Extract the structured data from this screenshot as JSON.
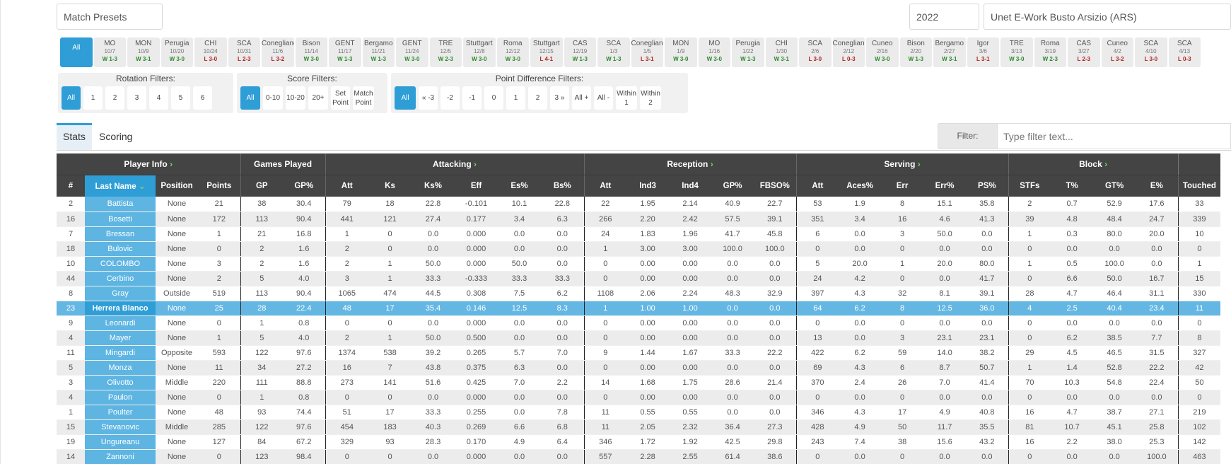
{
  "top": {
    "presets": "Match Presets",
    "year": "2022",
    "team": "Unet E-Work Busto Arsizio (ARS)"
  },
  "matches": [
    {
      "l": "All",
      "d": "",
      "r": "",
      "sel": true
    },
    {
      "l": "MO",
      "d": "10/7",
      "r": "W 1-3",
      "w": true
    },
    {
      "l": "MON",
      "d": "10/9",
      "r": "W 3-1",
      "w": true
    },
    {
      "l": "Perugia",
      "d": "10/20",
      "r": "W 3-0",
      "w": true
    },
    {
      "l": "CHI",
      "d": "10/24",
      "r": "L 3-0",
      "w": false
    },
    {
      "l": "SCA",
      "d": "10/31",
      "r": "L 2-3",
      "w": false
    },
    {
      "l": "Conegliano",
      "d": "11/6",
      "r": "L 3-2",
      "w": false
    },
    {
      "l": "Bison",
      "d": "11/14",
      "r": "W 3-0",
      "w": true
    },
    {
      "l": "GENT",
      "d": "11/17",
      "r": "W 1-3",
      "w": true
    },
    {
      "l": "Bergamo",
      "d": "11/21",
      "r": "W 1-3",
      "w": true
    },
    {
      "l": "GENT",
      "d": "11/24",
      "r": "W 3-0",
      "w": true
    },
    {
      "l": "TRE",
      "d": "12/5",
      "r": "W 2-3",
      "w": true
    },
    {
      "l": "Stuttgart",
      "d": "12/8",
      "r": "W 3-0",
      "w": true
    },
    {
      "l": "Roma",
      "d": "12/12",
      "r": "W 3-0",
      "w": true
    },
    {
      "l": "Stuttgart",
      "d": "12/15",
      "r": "L 4-1",
      "w": false
    },
    {
      "l": "CAS",
      "d": "12/19",
      "r": "W 1-3",
      "w": true
    },
    {
      "l": "SCA",
      "d": "1/3",
      "r": "W 1-3",
      "w": true
    },
    {
      "l": "Conegliano",
      "d": "1/5",
      "r": "L 3-1",
      "w": false
    },
    {
      "l": "MON",
      "d": "1/9",
      "r": "W 3-0",
      "w": true
    },
    {
      "l": "MO",
      "d": "1/16",
      "r": "W 3-0",
      "w": true
    },
    {
      "l": "Perugia",
      "d": "1/22",
      "r": "W 1-3",
      "w": true
    },
    {
      "l": "CHI",
      "d": "1/30",
      "r": "W 3-1",
      "w": true
    },
    {
      "l": "SCA",
      "d": "2/6",
      "r": "L 3-0",
      "w": false
    },
    {
      "l": "Conegliano",
      "d": "2/12",
      "r": "L 0-3",
      "w": false
    },
    {
      "l": "Cuneo",
      "d": "2/16",
      "r": "W 3-0",
      "w": true
    },
    {
      "l": "Bison",
      "d": "2/20",
      "r": "W 1-3",
      "w": true
    },
    {
      "l": "Bergamo",
      "d": "2/27",
      "r": "W 3-1",
      "w": true
    },
    {
      "l": "Igor",
      "d": "3/6",
      "r": "L 3-1",
      "w": false
    },
    {
      "l": "TRE",
      "d": "3/13",
      "r": "W 3-0",
      "w": true
    },
    {
      "l": "Roma",
      "d": "3/19",
      "r": "W 2-3",
      "w": true
    },
    {
      "l": "CAS",
      "d": "3/27",
      "r": "L 2-3",
      "w": false
    },
    {
      "l": "Cuneo",
      "d": "4/2",
      "r": "L 3-2",
      "w": false
    },
    {
      "l": "SCA",
      "d": "4/10",
      "r": "L 3-0",
      "w": false
    },
    {
      "l": "SCA",
      "d": "4/13",
      "r": "L 0-3",
      "w": false
    }
  ],
  "filters": {
    "rotation": {
      "title": "Rotation Filters:",
      "opts": [
        "All",
        "1",
        "2",
        "3",
        "4",
        "5",
        "6"
      ]
    },
    "score": {
      "title": "Score Filters:",
      "opts": [
        "All",
        "0-10",
        "10-20",
        "20+",
        "Set Point",
        "Match Point"
      ]
    },
    "pointdiff": {
      "title": "Point Difference Filters:",
      "opts": [
        "All",
        "« -3",
        "-2",
        "-1",
        "0",
        "1",
        "2",
        "3 »",
        "All +",
        "All -",
        "Within 1",
        "Within 2"
      ]
    }
  },
  "tabs": [
    "Stats",
    "Scoring"
  ],
  "filter": {
    "label": "Filter:",
    "placeholder": "Type filter text..."
  },
  "groups": [
    "Player Info",
    "Games Played",
    "Attacking",
    "Reception",
    "Serving",
    "Block"
  ],
  "columns": [
    "#",
    "Last Name",
    "Position",
    "Points",
    "GP",
    "GP%",
    "Att",
    "Ks",
    "Ks%",
    "Eff",
    "Es%",
    "Bs%",
    "Att",
    "Ind3",
    "Ind4",
    "GP%",
    "FBSO%",
    "Att",
    "Aces%",
    "Err",
    "Err%",
    "PS%",
    "STFs",
    "T%",
    "GT%",
    "E%",
    "Touched"
  ],
  "rows": [
    [
      "2",
      "Battista",
      "None",
      "21",
      "38",
      "30.4",
      "79",
      "18",
      "22.8",
      "-0.101",
      "10.1",
      "22.8",
      "22",
      "1.95",
      "2.14",
      "40.9",
      "22.7",
      "53",
      "1.9",
      "8",
      "15.1",
      "35.8",
      "2",
      "0.7",
      "52.9",
      "17.6",
      "33"
    ],
    [
      "16",
      "Bosetti",
      "None",
      "172",
      "113",
      "90.4",
      "441",
      "121",
      "27.4",
      "0.177",
      "3.4",
      "6.3",
      "266",
      "2.20",
      "2.42",
      "57.5",
      "39.1",
      "351",
      "3.4",
      "16",
      "4.6",
      "41.3",
      "39",
      "4.8",
      "48.4",
      "24.7",
      "339"
    ],
    [
      "7",
      "Bressan",
      "None",
      "1",
      "21",
      "16.8",
      "1",
      "0",
      "0.0",
      "0.000",
      "0.0",
      "0.0",
      "24",
      "1.83",
      "1.96",
      "41.7",
      "45.8",
      "6",
      "0.0",
      "3",
      "50.0",
      "0.0",
      "1",
      "0.3",
      "80.0",
      "20.0",
      "10"
    ],
    [
      "18",
      "Bulovic",
      "None",
      "0",
      "2",
      "1.6",
      "2",
      "0",
      "0.0",
      "0.000",
      "0.0",
      "0.0",
      "1",
      "3.00",
      "3.00",
      "100.0",
      "100.0",
      "0",
      "0.0",
      "0",
      "0.0",
      "0.0",
      "0",
      "0.0",
      "0.0",
      "0.0",
      "0"
    ],
    [
      "10",
      "COLOMBO",
      "None",
      "3",
      "2",
      "1.6",
      "2",
      "1",
      "50.0",
      "0.000",
      "50.0",
      "0.0",
      "0",
      "0.00",
      "0.00",
      "0.0",
      "0.0",
      "5",
      "20.0",
      "1",
      "20.0",
      "80.0",
      "1",
      "0.5",
      "100.0",
      "0.0",
      "1"
    ],
    [
      "44",
      "Cerbino",
      "None",
      "2",
      "5",
      "4.0",
      "3",
      "1",
      "33.3",
      "-0.333",
      "33.3",
      "33.3",
      "0",
      "0.00",
      "0.00",
      "0.0",
      "0.0",
      "24",
      "4.2",
      "0",
      "0.0",
      "41.7",
      "0",
      "6.6",
      "50.0",
      "16.7",
      "15"
    ],
    [
      "8",
      "Gray",
      "Outside",
      "519",
      "113",
      "90.4",
      "1065",
      "474",
      "44.5",
      "0.308",
      "7.5",
      "6.2",
      "1108",
      "2.06",
      "2.24",
      "48.3",
      "32.9",
      "397",
      "4.3",
      "32",
      "8.1",
      "39.1",
      "28",
      "4.7",
      "46.4",
      "31.1",
      "330"
    ],
    [
      "23",
      "Herrera Blanco",
      "None",
      "25",
      "28",
      "22.4",
      "48",
      "17",
      "35.4",
      "0.146",
      "12.5",
      "8.3",
      "1",
      "1.00",
      "1.00",
      "0.0",
      "0.0",
      "64",
      "6.2",
      "8",
      "12.5",
      "36.0",
      "4",
      "2.5",
      "40.4",
      "23.4",
      "11"
    ],
    [
      "9",
      "Leonardi",
      "None",
      "0",
      "1",
      "0.8",
      "0",
      "0",
      "0.0",
      "0.000",
      "0.0",
      "0.0",
      "0",
      "0.00",
      "0.00",
      "0.0",
      "0.0",
      "0",
      "0.0",
      "0",
      "0.0",
      "0.0",
      "0",
      "0.0",
      "0.0",
      "0.0",
      "0"
    ],
    [
      "4",
      "Mayer",
      "None",
      "1",
      "5",
      "4.0",
      "2",
      "1",
      "50.0",
      "0.500",
      "0.0",
      "0.0",
      "0",
      "0.00",
      "0.00",
      "0.0",
      "0.0",
      "13",
      "0.0",
      "3",
      "23.1",
      "23.1",
      "0",
      "6.2",
      "38.5",
      "7.7",
      "8"
    ],
    [
      "11",
      "Mingardi",
      "Opposite",
      "593",
      "122",
      "97.6",
      "1374",
      "538",
      "39.2",
      "0.265",
      "5.7",
      "7.0",
      "9",
      "1.44",
      "1.67",
      "33.3",
      "22.2",
      "422",
      "6.2",
      "59",
      "14.0",
      "38.2",
      "29",
      "4.5",
      "46.5",
      "31.5",
      "327"
    ],
    [
      "5",
      "Monza",
      "None",
      "11",
      "34",
      "27.2",
      "16",
      "7",
      "43.8",
      "0.375",
      "6.3",
      "0.0",
      "0",
      "0.00",
      "0.00",
      "0.0",
      "0.0",
      "69",
      "4.3",
      "6",
      "8.7",
      "50.7",
      "1",
      "1.4",
      "52.8",
      "22.2",
      "42"
    ],
    [
      "3",
      "Olivotto",
      "Middle",
      "220",
      "111",
      "88.8",
      "273",
      "141",
      "51.6",
      "0.425",
      "7.0",
      "2.2",
      "14",
      "1.68",
      "1.75",
      "28.6",
      "21.4",
      "370",
      "2.4",
      "26",
      "7.0",
      "41.4",
      "70",
      "10.3",
      "54.8",
      "22.4",
      "50"
    ],
    [
      "4",
      "Paulon",
      "None",
      "0",
      "1",
      "0.8",
      "0",
      "0",
      "0.0",
      "0.000",
      "0.0",
      "0.0",
      "0",
      "0.00",
      "0.00",
      "0.0",
      "0.0",
      "0",
      "0.0",
      "0",
      "0.0",
      "0.0",
      "0",
      "0.0",
      "0.0",
      "0.0",
      "0"
    ],
    [
      "1",
      "Poulter",
      "None",
      "48",
      "93",
      "74.4",
      "51",
      "17",
      "33.3",
      "0.255",
      "0.0",
      "7.8",
      "11",
      "0.55",
      "0.55",
      "0.0",
      "0.0",
      "346",
      "4.3",
      "17",
      "4.9",
      "40.8",
      "16",
      "4.7",
      "38.7",
      "27.1",
      "219"
    ],
    [
      "15",
      "Stevanovic",
      "Middle",
      "285",
      "122",
      "97.6",
      "454",
      "183",
      "40.3",
      "0.269",
      "6.6",
      "6.8",
      "11",
      "2.05",
      "2.32",
      "36.4",
      "27.3",
      "428",
      "4.9",
      "50",
      "11.7",
      "35.5",
      "81",
      "10.7",
      "45.1",
      "25.8",
      "102"
    ],
    [
      "19",
      "Ungureanu",
      "None",
      "127",
      "84",
      "67.2",
      "329",
      "93",
      "28.3",
      "0.170",
      "4.9",
      "6.4",
      "346",
      "1.72",
      "1.92",
      "42.5",
      "29.8",
      "243",
      "7.4",
      "38",
      "15.6",
      "43.2",
      "16",
      "2.2",
      "38.0",
      "25.3",
      "142"
    ],
    [
      "14",
      "Zannoni",
      "None",
      "0",
      "123",
      "98.4",
      "0",
      "0",
      "0.0",
      "0.000",
      "0.0",
      "0.0",
      "557",
      "2.28",
      "2.55",
      "61.4",
      "38.6",
      "0",
      "0.0",
      "0",
      "0.0",
      "0.0",
      "0",
      "0.0",
      "0.0",
      "100.0",
      "463"
    ]
  ],
  "highlight_row": 7
}
